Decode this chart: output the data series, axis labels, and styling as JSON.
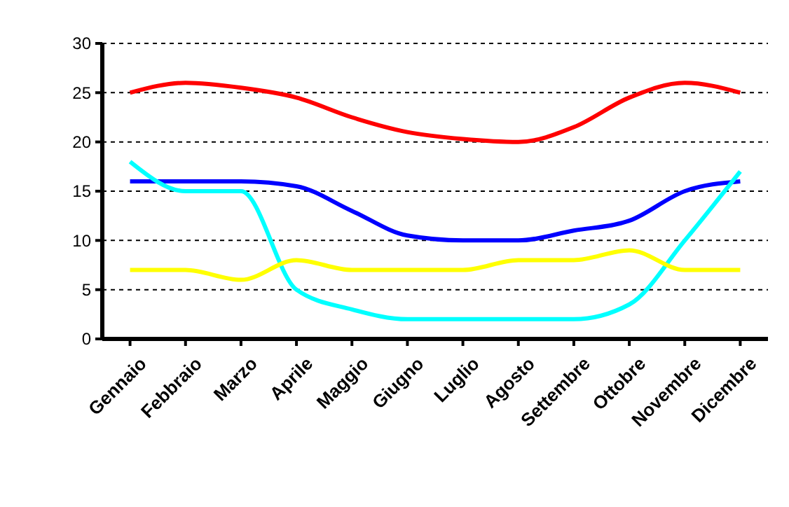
{
  "chart_data": {
    "type": "line",
    "categories": [
      "Gennaio",
      "Febbraio",
      "Marzo",
      "Aprile",
      "Maggio",
      "Giugno",
      "Luglio",
      "Agosto",
      "Settembre",
      "Ottobre",
      "Novembre",
      "Dicembre"
    ],
    "series": [
      {
        "color": "#ff0000",
        "values": [
          25,
          26,
          25.5,
          24.5,
          22.5,
          21,
          20.3,
          20,
          21.5,
          24.5,
          26,
          25
        ]
      },
      {
        "color": "#0000ff",
        "values": [
          16,
          16,
          16,
          15.5,
          13,
          10.5,
          10,
          10,
          11,
          12,
          15,
          16
        ]
      },
      {
        "color": "#00ffff",
        "values": [
          18,
          15,
          15,
          5,
          3,
          2,
          2,
          2,
          2,
          3.5,
          10,
          17
        ]
      },
      {
        "color": "#ffff00",
        "values": [
          7,
          7,
          6,
          8,
          7,
          7,
          7,
          8,
          8,
          9,
          7,
          7
        ]
      }
    ],
    "ylim": [
      0,
      30
    ],
    "yticks": [
      0,
      5,
      10,
      15,
      20,
      25,
      30
    ],
    "grid": "y",
    "marker": "none",
    "line_style": "solid"
  }
}
